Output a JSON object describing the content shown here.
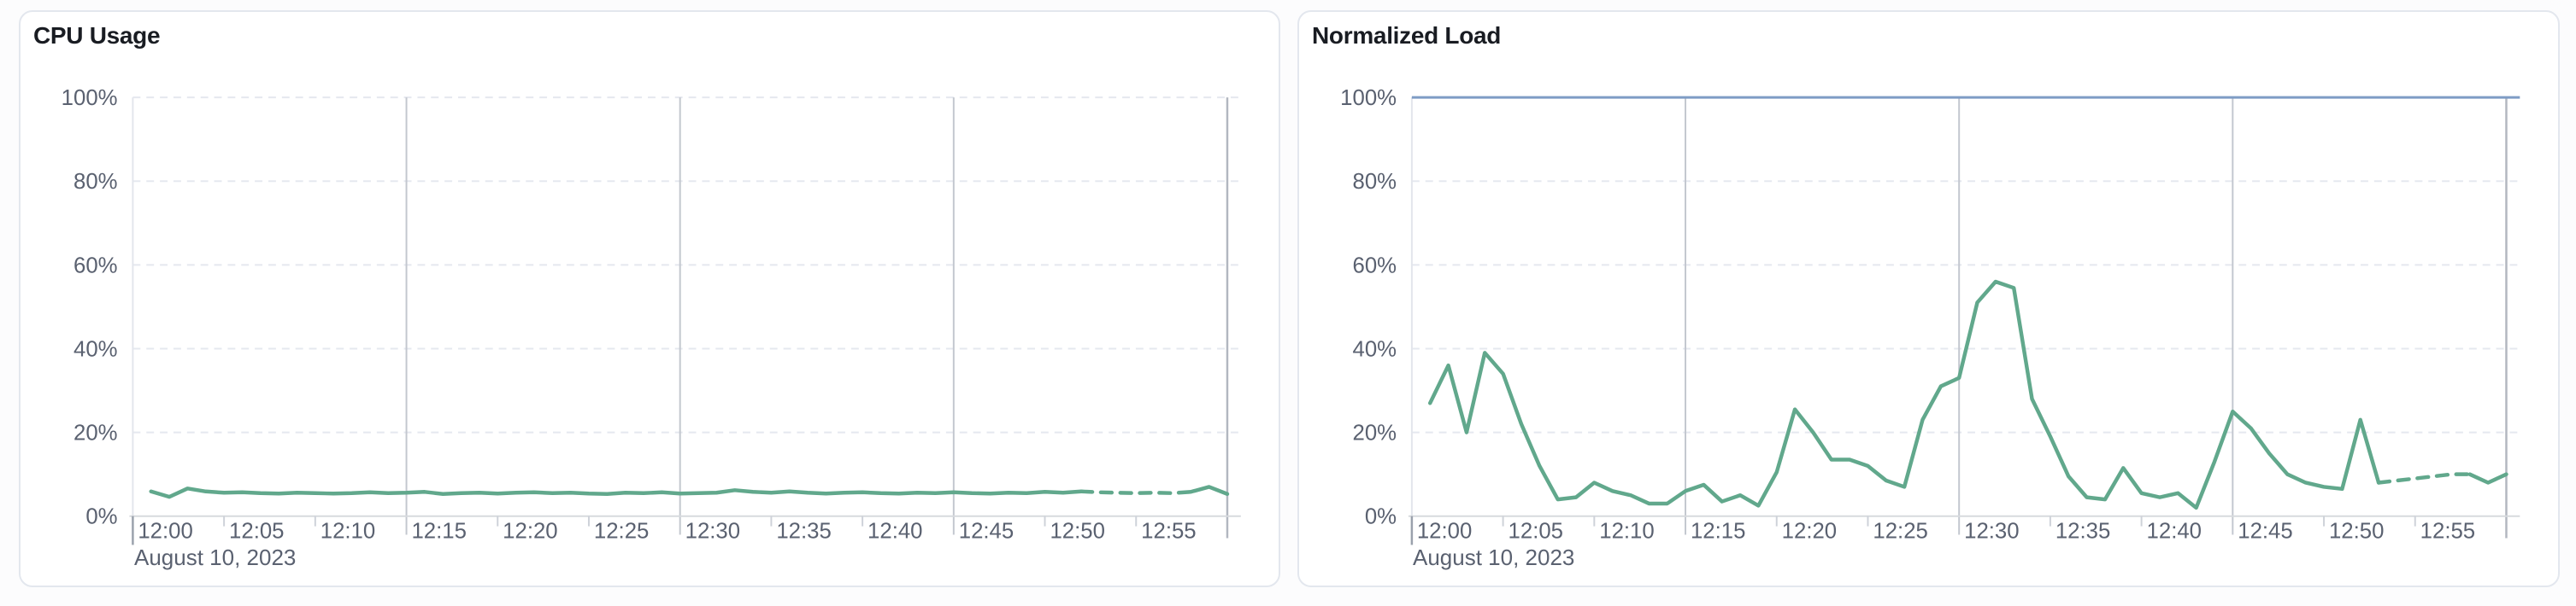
{
  "page": {
    "background": "#fcfcfd",
    "card_background": "#ffffff",
    "card_border": "#e3e7ee"
  },
  "x_axis": {
    "date_label": "August 10, 2023",
    "tick_labels": [
      "12:00",
      "12:05",
      "12:10",
      "12:15",
      "12:20",
      "12:25",
      "12:30",
      "12:35",
      "12:40",
      "12:45",
      "12:50",
      "12:55"
    ],
    "tick_interval_min": 5,
    "range": [
      "12:00",
      "13:00"
    ],
    "major_gridline_minutes": [
      15,
      30,
      45
    ],
    "end_line_minute": 60
  },
  "y_axis": {
    "tick_labels": [
      "0%",
      "20%",
      "40%",
      "60%",
      "80%",
      "100%"
    ],
    "range": [
      0,
      100
    ]
  },
  "colors": {
    "series_green": "#61a88c",
    "limit_blue": "#7e9cc5",
    "tick_text": "#5a6170",
    "title_text": "#191c22",
    "dashed_grid": "#e5e8ef",
    "major_vgrid": "#c3c7cf"
  },
  "chart_data": [
    {
      "type": "line",
      "title": "CPU Usage",
      "unit": "%",
      "ylim": [
        0,
        100
      ],
      "xlabel": "August 10, 2023",
      "ylabel": "",
      "grid": true,
      "legend": "none",
      "x_start_min": 1,
      "x_step_min": 1,
      "line_color": "#61a88c",
      "dash_from_min": 52,
      "dash_to_min": 58,
      "values": [
        5.9,
        4.6,
        6.6,
        5.9,
        5.6,
        5.7,
        5.5,
        5.4,
        5.6,
        5.5,
        5.4,
        5.5,
        5.7,
        5.5,
        5.6,
        5.8,
        5.3,
        5.5,
        5.6,
        5.4,
        5.6,
        5.7,
        5.5,
        5.6,
        5.4,
        5.3,
        5.6,
        5.5,
        5.7,
        5.4,
        5.5,
        5.6,
        6.2,
        5.8,
        5.6,
        5.9,
        5.6,
        5.4,
        5.6,
        5.7,
        5.5,
        5.4,
        5.6,
        5.5,
        5.7,
        5.5,
        5.4,
        5.6,
        5.5,
        5.8,
        5.6,
        5.9,
        5.7,
        5.6,
        5.5,
        5.6,
        5.5,
        5.8,
        7.0,
        5.3
      ]
    },
    {
      "type": "line",
      "title": "Normalized Load",
      "unit": "%",
      "ylim": [
        0,
        100
      ],
      "xlabel": "August 10, 2023",
      "ylabel": "",
      "grid": true,
      "legend": "none",
      "x_start_min": 1,
      "x_step_min": 1,
      "line_color": "#61a88c",
      "dash_from_min": 53,
      "dash_to_min": 58,
      "limit_line": {
        "value": 100,
        "color": "#7e9cc5"
      },
      "values": [
        27,
        36,
        20,
        39,
        34,
        22,
        12,
        4,
        4.5,
        8,
        6,
        5,
        3,
        3,
        6,
        7.5,
        3.5,
        5,
        2.5,
        10.5,
        25.5,
        20,
        13.5,
        13.5,
        12,
        8.5,
        7,
        23,
        31,
        33,
        51,
        56,
        54.5,
        28,
        19,
        9.5,
        4.5,
        4,
        11.5,
        5.5,
        4.5,
        5.5,
        2,
        13,
        25,
        21,
        15,
        10,
        8,
        7,
        6.5,
        23,
        8,
        8.5,
        9,
        9.5,
        10,
        10,
        8,
        10
      ]
    }
  ]
}
